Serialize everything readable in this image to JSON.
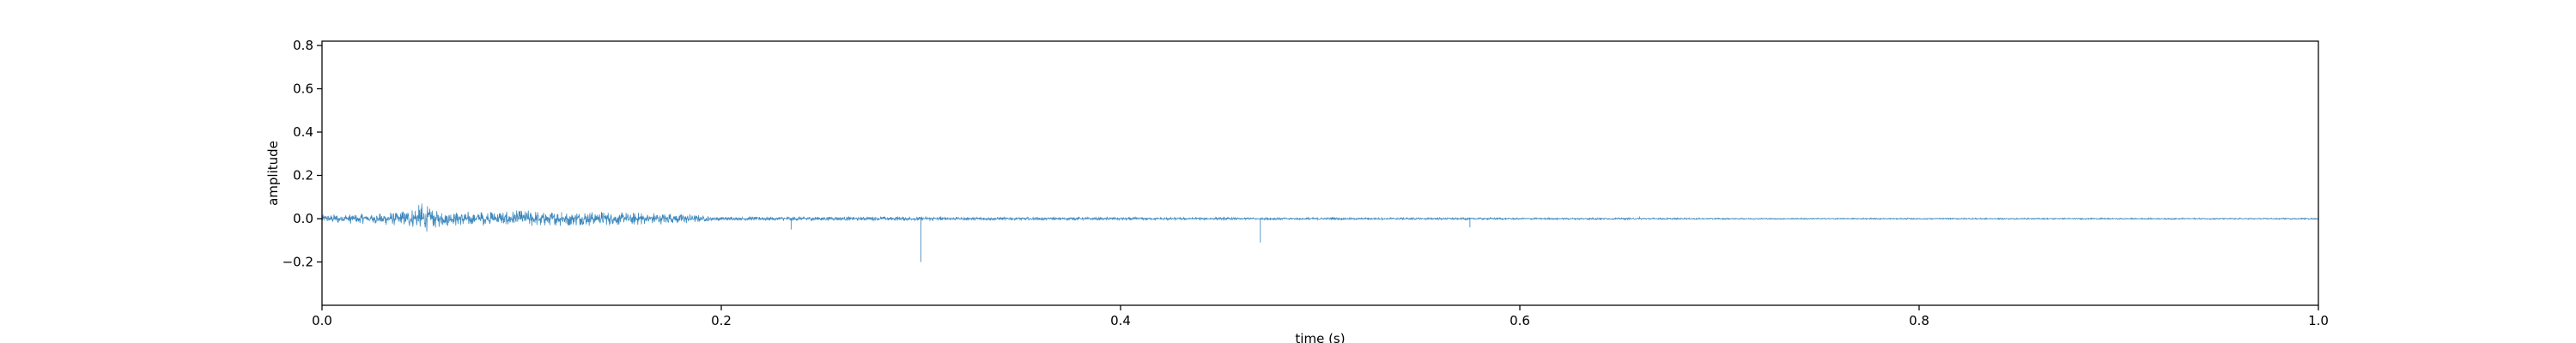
{
  "chart_data": {
    "type": "line",
    "title": "",
    "xlabel": "time (s)",
    "ylabel": "amplitude",
    "xlim": [
      0.0,
      1.0
    ],
    "ylim": [
      -0.4,
      0.82
    ],
    "x_ticks": [
      0.0,
      0.2,
      0.4,
      0.6,
      0.8,
      1.0
    ],
    "x_tick_labels": [
      "0.0",
      "0.2",
      "0.4",
      "0.6",
      "0.8",
      "1.0"
    ],
    "y_ticks": [
      -0.2,
      0.0,
      0.2,
      0.4,
      0.6,
      0.8
    ],
    "y_tick_labels": [
      "−0.2",
      "0.0",
      "0.2",
      "0.4",
      "0.6",
      "0.8"
    ],
    "grid": false,
    "legend": "none",
    "line_color": "#1f77b4",
    "series": [
      {
        "x": [
          0.0,
          0.02,
          0.04,
          0.05,
          0.06,
          0.08,
          0.1,
          0.12,
          0.14,
          0.16,
          0.18,
          0.2,
          0.235,
          0.3,
          0.31,
          0.47,
          0.54,
          0.575,
          0.6,
          0.64,
          0.66,
          0.7,
          0.8,
          0.9,
          1.0
        ],
        "y": [
          0.0,
          0.02,
          0.03,
          0.07,
          0.025,
          0.03,
          0.035,
          0.03,
          0.03,
          0.025,
          0.02,
          0.005,
          -0.05,
          -0.2,
          0.01,
          -0.11,
          0.005,
          -0.04,
          0.003,
          0.005,
          0.01,
          0.002,
          0.002,
          0.001,
          0.0
        ],
        "envelope": [
          0.02,
          0.025,
          0.035,
          0.07,
          0.035,
          0.035,
          0.04,
          0.035,
          0.035,
          0.03,
          0.025,
          0.008,
          0.01,
          0.01,
          0.008,
          0.005,
          0.005,
          0.005,
          0.004,
          0.004,
          0.004,
          0.003,
          0.003,
          0.003,
          0.003
        ]
      }
    ]
  }
}
